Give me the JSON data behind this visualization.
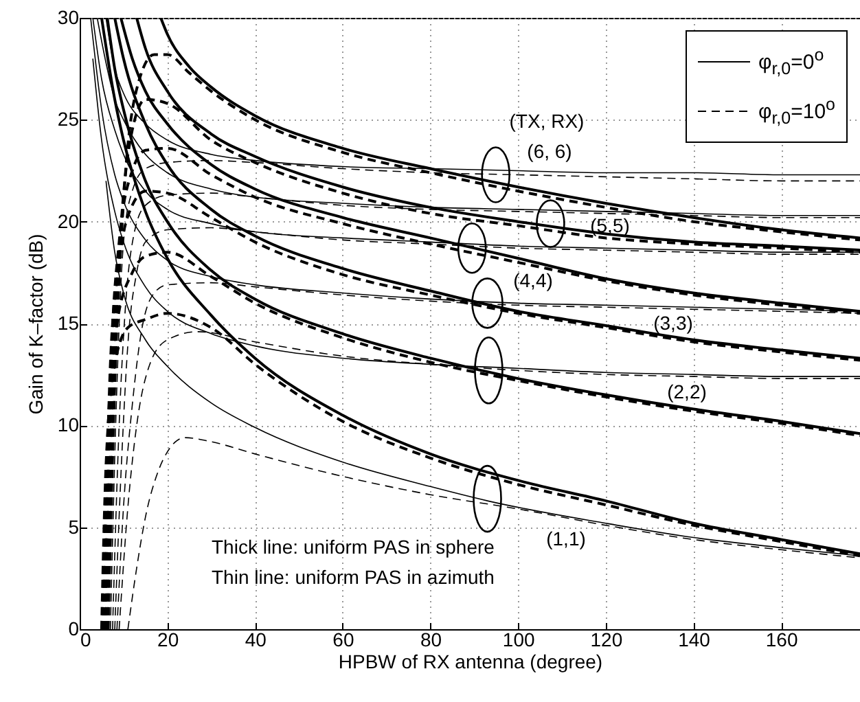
{
  "chart_data": {
    "type": "line",
    "xlabel": "HPBW of RX antenna (degree)",
    "ylabel": "Gain of K–factor (dB)",
    "xlim": [
      0,
      178
    ],
    "ylim": [
      0,
      30
    ],
    "xticks": [
      0,
      20,
      40,
      60,
      80,
      100,
      120,
      140,
      160
    ],
    "yticks": [
      0,
      5,
      10,
      15,
      20,
      25,
      30
    ],
    "grid": true,
    "legend": "top right",
    "annotations": [
      "(TX, RX)",
      "(6, 6)",
      "(5,5)",
      "(4,4)",
      "(3,3)",
      "(2,2)",
      "(1,1)",
      "Thick line: uniform PAS in sphere",
      "Thin line: uniform PAS in azimuth"
    ],
    "series": [
      {
        "name": "φ$_{r,0}$=0$^{o}$",
        "color": "#000000",
        "line_style": "solid",
        "x": [
          5,
          8,
          10,
          15,
          20,
          30,
          40,
          60,
          80,
          100,
          120,
          140,
          160,
          178
        ],
        "values": [
          30,
          26,
          24,
          20.5,
          18.2,
          15.4,
          13.3,
          10.5,
          8.6,
          7.3,
          6.3,
          5.2,
          4.4,
          3.7
        ]
      },
      {
        "color": "#000000",
        "line_style": "solid",
        "x": [
          6.3,
          8,
          10,
          15,
          20,
          30,
          40,
          60,
          80,
          100,
          120,
          140,
          160,
          178
        ],
        "values": [
          30,
          27.5,
          25.5,
          22,
          20,
          17.6,
          16.2,
          14.5,
          13.3,
          12.3,
          11.5,
          10.8,
          10.2,
          9.6
        ]
      },
      {
        "color": "#000000",
        "line_style": "solid",
        "x": [
          8,
          10,
          15,
          20,
          30,
          40,
          60,
          80,
          100,
          120,
          140,
          160,
          178
        ],
        "values": [
          30,
          28,
          24.8,
          22.8,
          20.6,
          19.3,
          17.7,
          16.6,
          15.6,
          14.9,
          14.2,
          13.7,
          13.3
        ]
      },
      {
        "color": "#000000",
        "line_style": "solid",
        "x": [
          9.4,
          12,
          15,
          20,
          30,
          40,
          60,
          80,
          100,
          120,
          140,
          160,
          178
        ],
        "values": [
          30,
          28,
          26.4,
          24.8,
          22.8,
          21.6,
          20.2,
          19.2,
          18.2,
          17.2,
          16.5,
          16,
          15.6
        ]
      },
      {
        "color": "#000000",
        "line_style": "solid",
        "x": [
          13,
          15,
          20,
          30,
          40,
          60,
          80,
          100,
          120,
          140,
          160,
          178
        ],
        "values": [
          30,
          28.5,
          26.4,
          24.3,
          23.2,
          21.7,
          20.7,
          20,
          19.4,
          19,
          18.8,
          18.6
        ]
      },
      {
        "color": "#000000",
        "line_style": "solid",
        "x": [
          18.5,
          20,
          25,
          30,
          40,
          60,
          80,
          100,
          120,
          140,
          160,
          178
        ],
        "values": [
          30,
          29.2,
          27.6,
          26.6,
          25.2,
          23.6,
          22.6,
          21.7,
          20.9,
          20.2,
          19.6,
          19.2
        ]
      },
      {
        "name": "φ$_{r,0}$=10$^{o}$",
        "color": "#000000",
        "line_style": "dashed",
        "x": [
          5,
          6,
          8,
          11,
          15,
          20,
          30,
          40,
          60,
          80,
          100,
          120,
          140,
          160,
          178
        ],
        "values": [
          0,
          8,
          13,
          14.8,
          15.2,
          15.5,
          14.8,
          13,
          10.2,
          8.4,
          7.1,
          6.1,
          5.1,
          4.3,
          3.6
        ]
      },
      {
        "color": "#000000",
        "line_style": "dashed",
        "x": [
          5.3,
          6.5,
          8.5,
          12,
          15,
          20,
          30,
          40,
          60,
          80,
          100,
          120,
          140,
          160,
          178
        ],
        "values": [
          0,
          10,
          15,
          17.5,
          18.3,
          18.5,
          17.3,
          16,
          14.3,
          13.1,
          12.2,
          11.4,
          10.7,
          10.1,
          9.5
        ]
      },
      {
        "color": "#000000",
        "line_style": "dashed",
        "x": [
          5.5,
          7,
          9,
          12,
          15,
          20,
          30,
          40,
          60,
          80,
          100,
          120,
          140,
          160,
          178
        ],
        "values": [
          0,
          13,
          18,
          20.8,
          21.5,
          21.4,
          20.2,
          19,
          17.4,
          16.4,
          15.5,
          14.8,
          14.1,
          13.6,
          13.2
        ]
      },
      {
        "color": "#000000",
        "line_style": "dashed",
        "x": [
          5.8,
          7,
          9,
          12,
          15,
          20,
          30,
          40,
          60,
          80,
          100,
          120,
          140,
          160,
          178
        ],
        "values": [
          0,
          12,
          19,
          22.5,
          23.5,
          23.6,
          22.3,
          21.2,
          19.9,
          18.9,
          18,
          17.1,
          16.4,
          15.9,
          15.5
        ]
      },
      {
        "color": "#000000",
        "line_style": "dashed",
        "x": [
          6,
          7.5,
          9.5,
          12,
          15,
          20,
          30,
          40,
          60,
          80,
          100,
          120,
          140,
          160,
          178
        ],
        "values": [
          0,
          12,
          20,
          24.5,
          26,
          25.8,
          24,
          22.9,
          21.4,
          20.4,
          19.8,
          19.2,
          18.9,
          18.7,
          18.5
        ]
      },
      {
        "color": "#000000",
        "line_style": "dashed",
        "x": [
          6.5,
          8,
          10,
          13,
          17,
          20,
          25,
          30,
          40,
          60,
          80,
          100,
          120,
          140,
          160,
          178
        ],
        "values": [
          0,
          12,
          21,
          26.5,
          28.2,
          28.2,
          27.3,
          26.4,
          25,
          23.4,
          22.4,
          21.5,
          20.7,
          20,
          19.5,
          19.1
        ]
      },
      {
        "color": "#000000",
        "line_style": "solid",
        "x": [
          6,
          8,
          10,
          15,
          20,
          30,
          40,
          60,
          80,
          93,
          120,
          140,
          160,
          178
        ],
        "values": [
          22,
          18.5,
          16.5,
          14.2,
          12.9,
          11.1,
          9.9,
          8.2,
          7,
          6.3,
          5.2,
          4.5,
          4,
          3.6
        ]
      },
      {
        "color": "#000000",
        "line_style": "solid",
        "x": [
          3,
          5,
          8,
          10,
          15,
          20,
          30,
          40,
          60,
          80,
          100,
          120,
          140,
          160,
          178
        ],
        "values": [
          28,
          24,
          20.5,
          19,
          16.8,
          15.6,
          14.5,
          13.9,
          13.3,
          13,
          12.8,
          12.6,
          12.5,
          12.4,
          12.4
        ]
      },
      {
        "color": "#000000",
        "line_style": "solid",
        "x": [
          2.5,
          5,
          8,
          10,
          15,
          20,
          30,
          40,
          60,
          80,
          100,
          120,
          140,
          160,
          178
        ],
        "values": [
          30,
          25.5,
          22.3,
          21,
          19.1,
          18.1,
          17.3,
          16.9,
          16.5,
          16.2,
          16,
          15.9,
          15.8,
          15.7,
          15.6
        ]
      },
      {
        "color": "#000000",
        "line_style": "solid",
        "x": [
          3,
          5,
          8,
          10,
          15,
          20,
          30,
          40,
          60,
          80,
          100,
          120,
          140,
          160,
          178
        ],
        "values": [
          30,
          27,
          24.5,
          23.3,
          21.5,
          20.6,
          19.9,
          19.5,
          19.2,
          19,
          18.8,
          18.7,
          18.6,
          18.5,
          18.5
        ]
      },
      {
        "color": "#000000",
        "line_style": "solid",
        "x": [
          4,
          6,
          8,
          10,
          15,
          20,
          30,
          40,
          60,
          80,
          100,
          120,
          140,
          160,
          178
        ],
        "values": [
          30,
          27.8,
          26,
          25,
          23.3,
          22.4,
          21.6,
          21.2,
          20.9,
          20.7,
          20.6,
          20.5,
          20.4,
          20.3,
          20.3
        ]
      },
      {
        "color": "#000000",
        "line_style": "solid",
        "x": [
          6,
          8,
          10,
          15,
          20,
          30,
          40,
          60,
          80,
          100,
          120,
          140,
          160,
          178
        ],
        "values": [
          30,
          27.5,
          26.3,
          24.8,
          24,
          23.3,
          23,
          22.7,
          22.6,
          22.5,
          22.4,
          22.4,
          22.3,
          22.3
        ]
      },
      {
        "color": "#000000",
        "line_style": "dashed",
        "x": [
          11,
          13,
          15,
          18,
          20,
          24,
          30,
          40,
          60,
          80,
          100,
          120,
          140,
          160,
          178
        ],
        "values": [
          0,
          3,
          5.5,
          7.8,
          8.7,
          9.4,
          9.2,
          8.6,
          7.5,
          6.6,
          5.9,
          5.1,
          4.4,
          3.9,
          3.5
        ]
      },
      {
        "color": "#000000",
        "line_style": "dashed",
        "x": [
          9,
          11,
          13,
          16,
          20,
          27,
          40,
          60,
          80,
          100,
          120,
          140,
          160,
          178
        ],
        "values": [
          0,
          6,
          10,
          13,
          14.2,
          14.6,
          14.1,
          13.4,
          13,
          12.7,
          12.5,
          12.4,
          12.3,
          12.3
        ]
      },
      {
        "color": "#000000",
        "line_style": "dashed",
        "x": [
          8.5,
          10,
          12,
          14,
          17,
          20,
          30,
          40,
          60,
          80,
          100,
          120,
          140,
          160,
          178
        ],
        "values": [
          0,
          6,
          11,
          14.5,
          16.5,
          16.9,
          17,
          16.8,
          16.4,
          16.1,
          15.9,
          15.8,
          15.7,
          15.6,
          15.5
        ]
      },
      {
        "color": "#000000",
        "line_style": "dashed",
        "x": [
          8,
          9.5,
          11,
          13,
          15,
          20,
          30,
          40,
          60,
          80,
          100,
          120,
          140,
          160,
          178
        ],
        "values": [
          0,
          8,
          14,
          17.5,
          19,
          19.6,
          19.7,
          19.5,
          19.1,
          18.9,
          18.7,
          18.6,
          18.5,
          18.4,
          18.4
        ]
      },
      {
        "color": "#000000",
        "line_style": "dashed",
        "x": [
          7.5,
          9,
          10.5,
          12.5,
          15,
          20,
          30,
          40,
          60,
          80,
          100,
          120,
          140,
          160,
          178
        ],
        "values": [
          0,
          10,
          16,
          19.5,
          20.8,
          21.3,
          21.4,
          21.2,
          20.8,
          20.6,
          20.5,
          20.4,
          20.3,
          20.2,
          20.2
        ]
      },
      {
        "color": "#000000",
        "line_style": "dashed",
        "x": [
          7,
          8.5,
          10,
          12,
          15,
          20,
          30,
          40,
          60,
          80,
          100,
          120,
          140,
          160,
          178
        ],
        "values": [
          0,
          12,
          19,
          21.5,
          22.6,
          22.9,
          23,
          22.9,
          22.6,
          22.4,
          22.3,
          22.2,
          22.1,
          22,
          22
        ]
      }
    ]
  }
}
